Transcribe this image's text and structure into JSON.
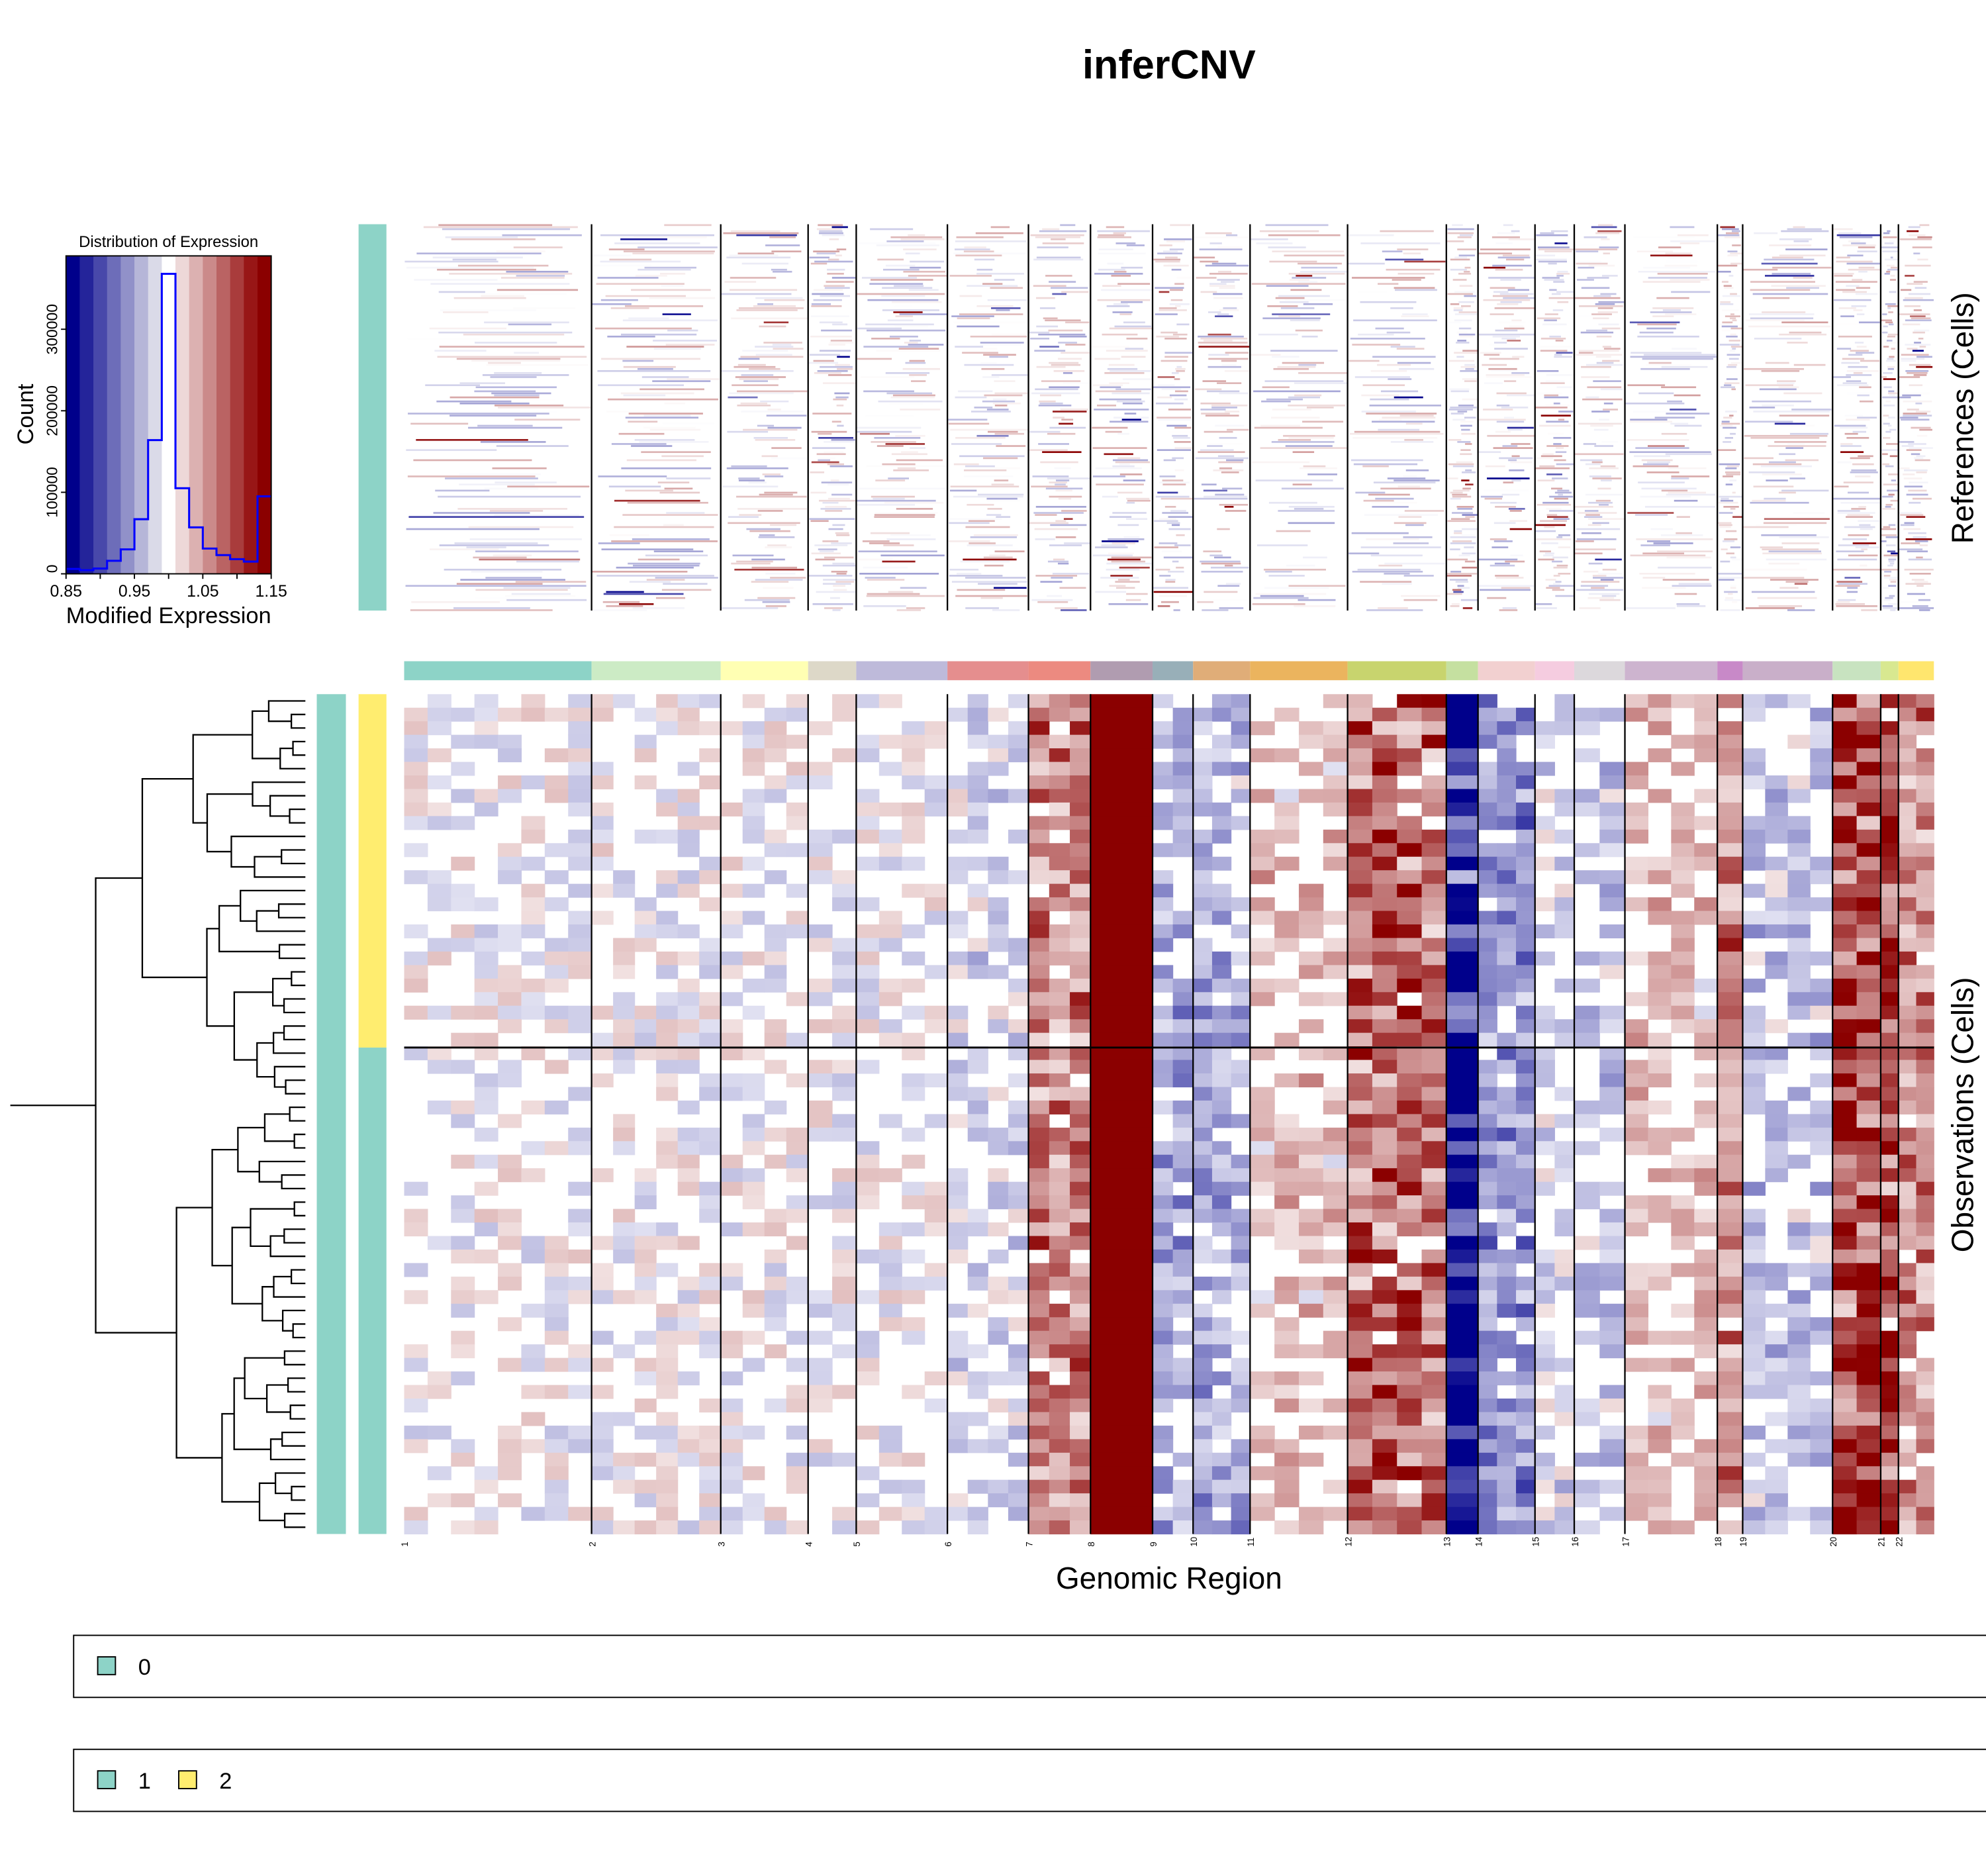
{
  "title": "inferCNV",
  "side_labels": {
    "references": "References (Cells)",
    "observations": "Observations (Cells)"
  },
  "xlabel": "Genomic Region",
  "chart_data": [
    {
      "type": "bar",
      "subtype": "histogram",
      "title": "Distribution of Expression",
      "xlabel": "Modified Expression",
      "ylabel": "Count",
      "xlim": [
        0.85,
        1.15
      ],
      "ylim": [
        0,
        390000
      ],
      "x_ticks": [
        "0.85",
        "0.95",
        "1.05",
        "1.15"
      ],
      "y_ticks": [
        "0",
        "100000",
        "200000",
        "300000"
      ],
      "bin_edges": [
        0.85,
        0.87,
        0.89,
        0.91,
        0.93,
        0.95,
        0.97,
        0.99,
        1.01,
        1.03,
        1.05,
        1.07,
        1.09,
        1.11,
        1.13,
        1.15
      ],
      "values": [
        6000,
        4500,
        6500,
        16000,
        30000,
        67000,
        164000,
        368000,
        105000,
        57000,
        31000,
        23000,
        18000,
        15000,
        95000
      ],
      "line_color": "#0000FF",
      "colorscale": [
        "#00008B",
        "#24249A",
        "#4848AA",
        "#6D6DB9",
        "#9191C9",
        "#B6B6D8",
        "#DADAE8",
        "#FFFFFF",
        "#EDD8D8",
        "#DCB1B1",
        "#CB8A8A",
        "#BA6363",
        "#A93C3C",
        "#981616",
        "#8B0000"
      ]
    },
    {
      "type": "heatmap",
      "title": "inferCNV",
      "xlabel": "Genomic Region",
      "chromosomes": [
        "1",
        "2",
        "3",
        "4",
        "5",
        "6",
        "7",
        "8",
        "9",
        "10",
        "11",
        "12",
        "13",
        "14",
        "15",
        "16",
        "17",
        "18",
        "19",
        "20",
        "21",
        "22"
      ],
      "chromosome_colors": [
        "#8DD3C7",
        "#CCEBC5",
        "#FFFFB3",
        "#DDD8C8",
        "#BEBADA",
        "#E58E8E",
        "#EC8A80",
        "#B09CB0",
        "#98AFB8",
        "#E0AD78",
        "#EBB45E",
        "#C8D46E",
        "#C5E0A0",
        "#F2D0D0",
        "#F5CCE0",
        "#DCD8DC",
        "#CDB4CF",
        "#C889C8",
        "#C9AFC9",
        "#C8E3C0",
        "#D8E890",
        "#FFE66E"
      ],
      "colorscale": {
        "low": "#00008B",
        "mid": "#FFFFFF",
        "high": "#8B0000"
      },
      "references_group": "0",
      "observation_groups": [
        "2",
        "1"
      ]
    }
  ],
  "legends": [
    {
      "items": [
        {
          "label": "0",
          "color": "#8DD3C7"
        }
      ]
    },
    {
      "items": [
        {
          "label": "1",
          "color": "#8DD3C7"
        },
        {
          "label": "2",
          "color": "#FFED6F"
        }
      ]
    }
  ]
}
